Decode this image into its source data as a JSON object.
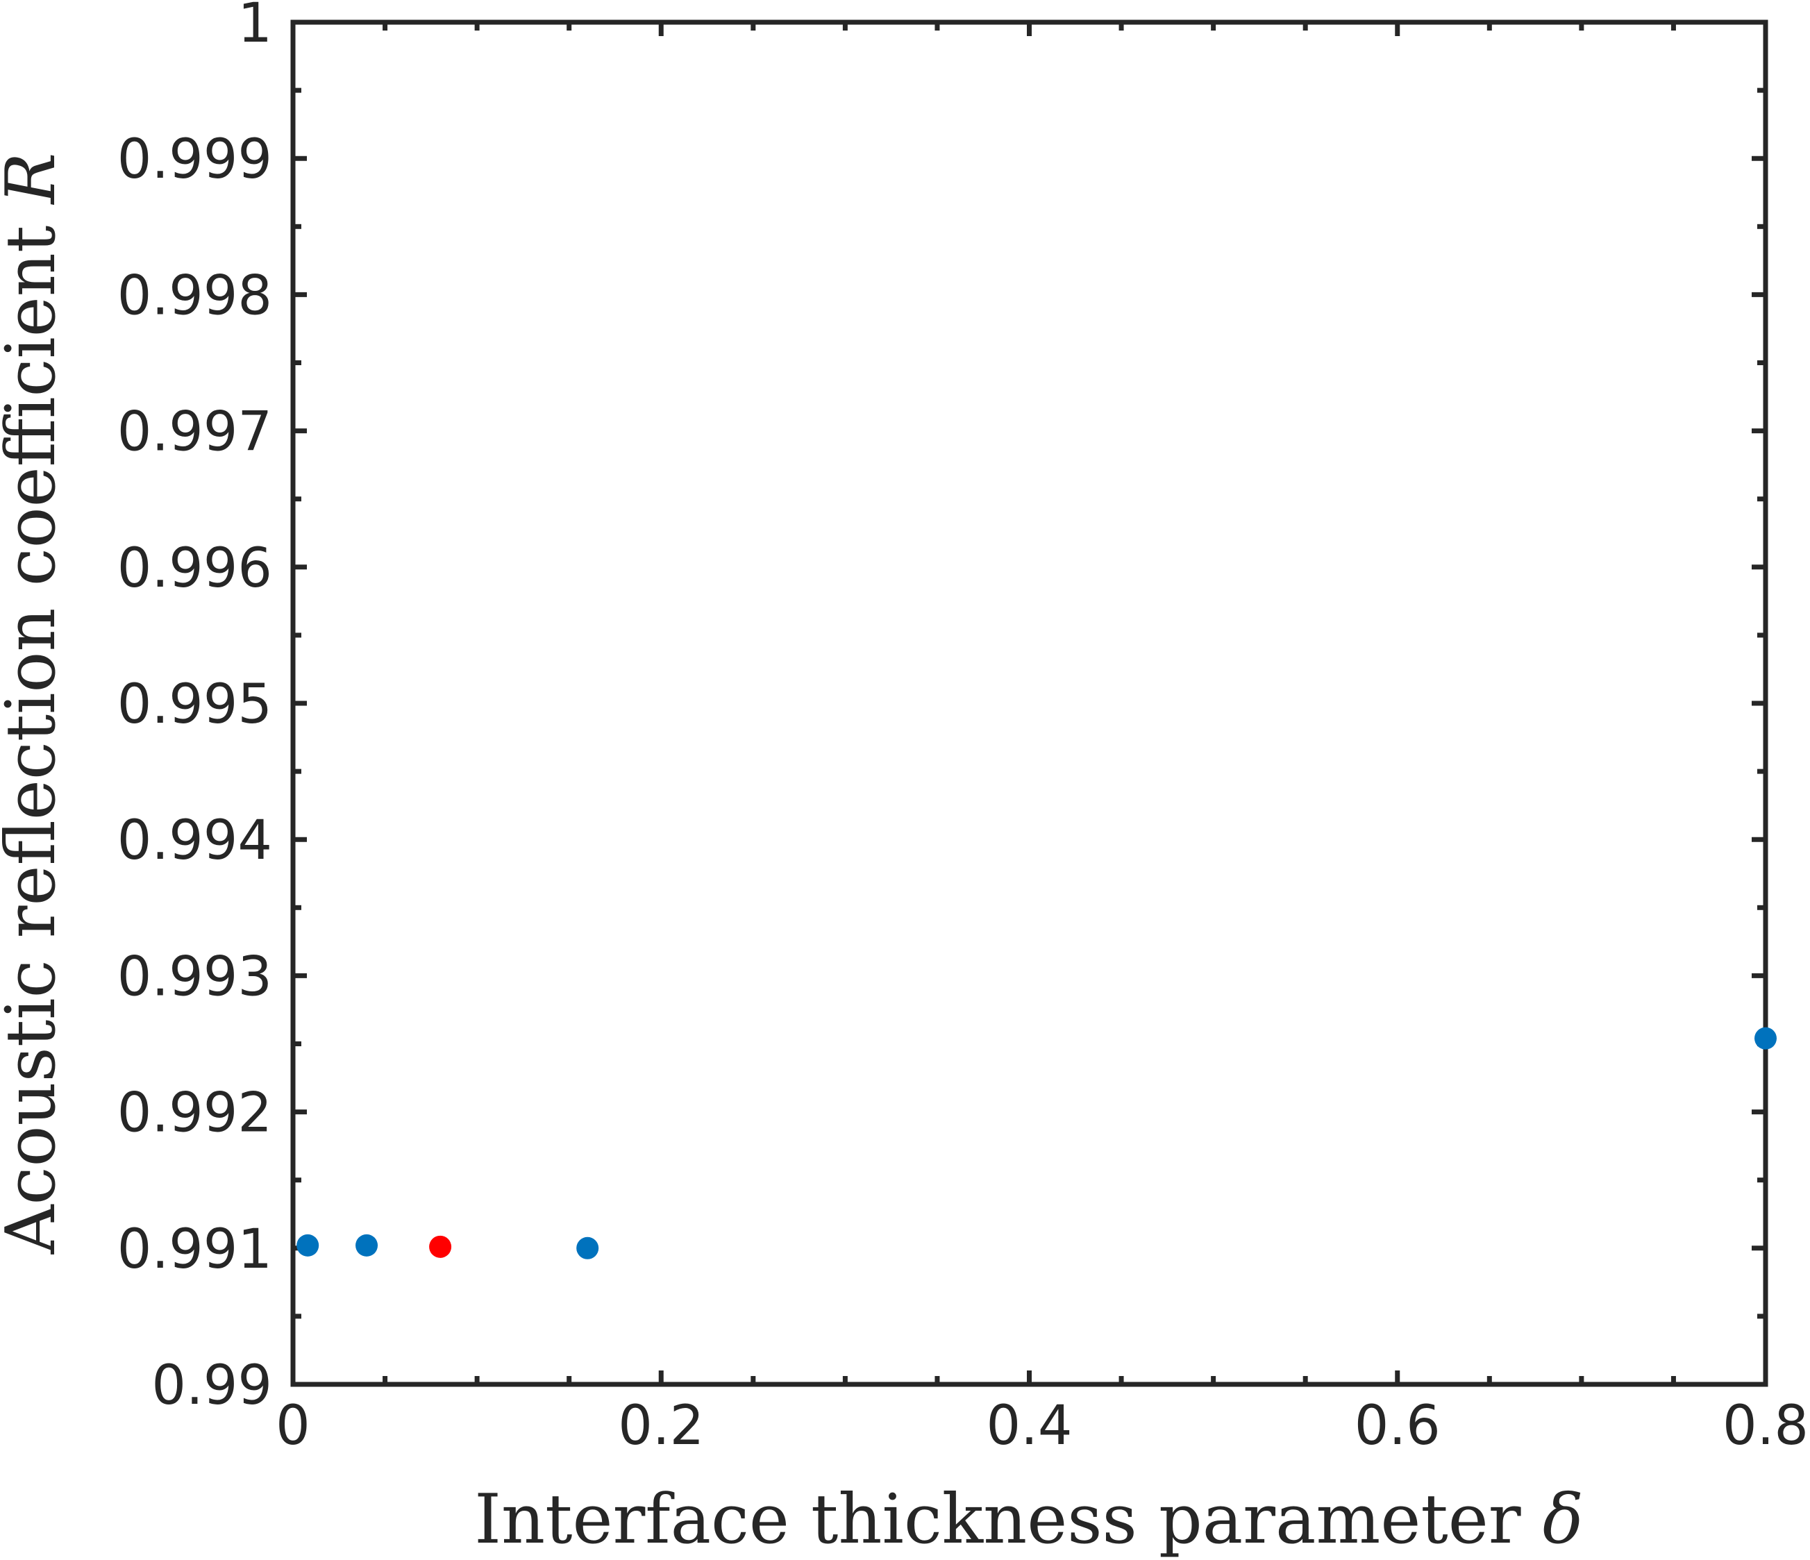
{
  "chart_data": {
    "type": "scatter",
    "title": "",
    "xlabel": "Interface thickness parameter",
    "xlabel_symbol": "δ",
    "ylabel": "Acoustic reflection coefficient",
    "ylabel_symbol": "R",
    "xlim": [
      0,
      0.8
    ],
    "ylim": [
      0.99,
      1
    ],
    "x_ticks": [
      "0",
      "0.2",
      "0.4",
      "0.6",
      "0.8"
    ],
    "y_ticks": [
      "0.99",
      "0.991",
      "0.992",
      "0.993",
      "0.994",
      "0.995",
      "0.996",
      "0.997",
      "0.998",
      "0.999",
      "1"
    ],
    "grid": false,
    "legend": "none",
    "series": [
      {
        "color": "#0072BD",
        "x": [
          0.008,
          0.04,
          0.16,
          0.8
        ],
        "y": [
          0.99102,
          0.99102,
          0.991,
          0.99254
        ]
      },
      {
        "color": "#FF0000",
        "x": [
          0.08
        ],
        "y": [
          0.99101
        ]
      }
    ],
    "colors": {
      "axes": "#262626",
      "background": "#ffffff"
    }
  }
}
